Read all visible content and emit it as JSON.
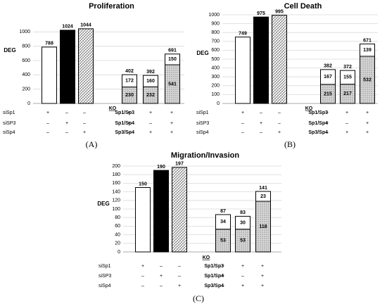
{
  "patterns": {
    "white": "#ffffff",
    "black": "#000000",
    "hatch_stroke": "#7a7a7a",
    "stipple": "#bdbdbd",
    "grid": "#d9d9d9"
  },
  "chart_data": [
    {
      "id": "A",
      "caption": "(A)",
      "type": "bar",
      "title": "Proliferation",
      "ylabel": "DEG",
      "ylim": [
        0,
        1200
      ],
      "yticks": [
        0,
        200,
        400,
        600,
        800,
        1000
      ],
      "grid": true,
      "ko_label": "KO",
      "rows": [
        {
          "label": "siSp1",
          "marks": [
            "+",
            "–",
            "–",
            "Sp1/Sp3",
            "+",
            "+",
            "+"
          ]
        },
        {
          "label": "siSP3",
          "marks": [
            "–",
            "+",
            "–",
            "Sp1/Sp4",
            "+",
            "–",
            "+"
          ]
        },
        {
          "label": "siSp4",
          "marks": [
            "–",
            "–",
            "+",
            "Sp3/Sp4",
            "–",
            "+",
            "+"
          ]
        }
      ],
      "single_bars": [
        {
          "value": 788,
          "fill": "white"
        },
        {
          "value": 1024,
          "fill": "black"
        },
        {
          "value": 1044,
          "fill": "hatch"
        }
      ],
      "stacked_bars": [
        {
          "total": 402,
          "bottom": 230,
          "top": 172
        },
        {
          "total": 392,
          "bottom": 232,
          "top": 160
        },
        {
          "total": 691,
          "bottom": 541,
          "top": 150
        }
      ]
    },
    {
      "id": "B",
      "caption": "(B)",
      "type": "bar",
      "title": "Cell Death",
      "ylabel": "DEG",
      "ylim": [
        0,
        1000
      ],
      "yticks": [
        0,
        100,
        200,
        300,
        400,
        500,
        600,
        700,
        800,
        900,
        1000
      ],
      "grid": true,
      "ko_label": "KO",
      "rows": [
        {
          "label": "siSp1",
          "marks": [
            "+",
            "–",
            "–",
            "Sp1/Sp3",
            "+",
            "+",
            "+"
          ]
        },
        {
          "label": "siSP3",
          "marks": [
            "–",
            "+",
            "–",
            "Sp1/Sp4",
            "+",
            "–",
            "+"
          ]
        },
        {
          "label": "siSp4",
          "marks": [
            "–",
            "–",
            "+",
            "Sp3/Sp4",
            "–",
            "+",
            "+"
          ]
        }
      ],
      "single_bars": [
        {
          "value": 749,
          "fill": "white"
        },
        {
          "value": 975,
          "fill": "black"
        },
        {
          "value": 995,
          "fill": "hatch"
        }
      ],
      "stacked_bars": [
        {
          "total": 382,
          "bottom": 215,
          "top": 167
        },
        {
          "total": 372,
          "bottom": 217,
          "top": 155
        },
        {
          "total": 671,
          "bottom": 532,
          "top": 139
        }
      ]
    },
    {
      "id": "C",
      "caption": "(C)",
      "type": "bar",
      "title": "Migration/Invasion",
      "ylabel": "DEG",
      "ylim": [
        0,
        200
      ],
      "yticks": [
        0,
        20,
        40,
        60,
        80,
        100,
        120,
        140,
        160,
        180,
        200
      ],
      "grid": true,
      "ko_label": "KO",
      "rows": [
        {
          "label": "siSp1",
          "marks": [
            "+",
            "–",
            "–",
            "Sp1/Sp3",
            "+",
            "+",
            "+"
          ]
        },
        {
          "label": "siSP3",
          "marks": [
            "–",
            "+",
            "–",
            "Sp1/Sp4",
            "+",
            "–",
            "+"
          ]
        },
        {
          "label": "siSp4",
          "marks": [
            "–",
            "–",
            "+",
            "Sp3/Sp4",
            "–",
            "+",
            "+"
          ]
        }
      ],
      "single_bars": [
        {
          "value": 150,
          "fill": "white"
        },
        {
          "value": 190,
          "fill": "black"
        },
        {
          "value": 197,
          "fill": "hatch"
        }
      ],
      "stacked_bars": [
        {
          "total": 87,
          "bottom": 53,
          "top": 34
        },
        {
          "total": 83,
          "bottom": 53,
          "top": 30
        },
        {
          "total": 141,
          "bottom": 118,
          "top": 23
        }
      ]
    }
  ]
}
